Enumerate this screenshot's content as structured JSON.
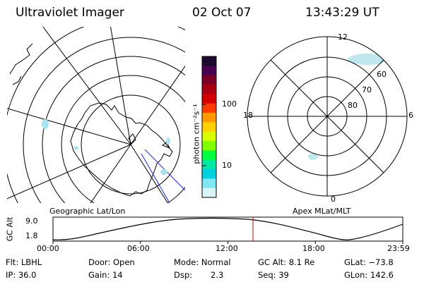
{
  "header": {
    "instrument": "Ultraviolet Imager",
    "date": "02 Oct 07",
    "time": "13:43:29 UT"
  },
  "geo_panel": {
    "label": "Geographic Lat/Lon"
  },
  "mag_panel": {
    "label": "Apex MLat/MLT",
    "mlt_labels": {
      "top": "12",
      "left": "18",
      "right": "6",
      "bottom": "0"
    },
    "lat_labels": [
      "60",
      "70",
      "80"
    ]
  },
  "colorbar": {
    "unit_label": "photon cm⁻²s⁻¹",
    "ticks": [
      "100",
      "10"
    ],
    "colors": [
      "#1a0a2e",
      "#4a0050",
      "#7a0025",
      "#a80010",
      "#d40000",
      "#ff3c00",
      "#ff9900",
      "#ffd200",
      "#d8ff00",
      "#80ff00",
      "#00ff40",
      "#00e8a8",
      "#00d0e0",
      "#80e8f0",
      "#d8f4f6"
    ]
  },
  "timeline": {
    "axis_label": "GC Alt",
    "y_ticks": [
      "9.0",
      "1.8"
    ],
    "x_ticks": [
      "00:00",
      "06:00",
      "12:00",
      "18:00",
      "23:59"
    ],
    "current_time_hours": 13.72,
    "marker_color": "#d00000"
  },
  "info": {
    "row1": {
      "flt": "Flt: LBHL",
      "door": "Door: Open",
      "mode": "Mode: Normal",
      "gcalt": "GC Alt: 8.1 Re",
      "glat": "GLat: −73.8"
    },
    "row2": {
      "ip": "IP: 36.0",
      "gain": "Gain: 14",
      "dsp_label": "Dsp:",
      "dsp_value": "2.3",
      "seq": "Seq: 39",
      "glon": "GLon: 142.6"
    }
  }
}
